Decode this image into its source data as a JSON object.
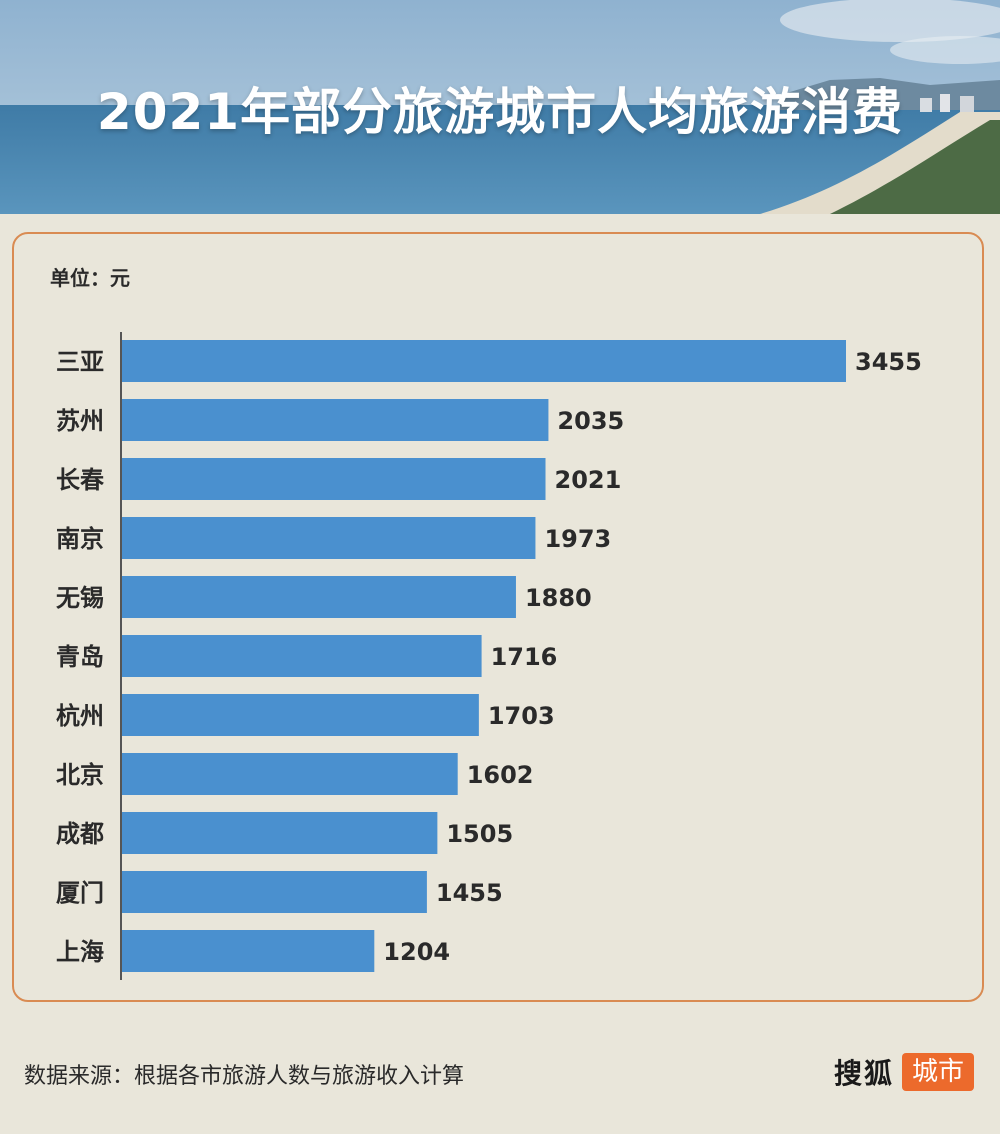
{
  "header": {
    "title": "2021年部分旅游城市人均旅游消费"
  },
  "unit_label": "单位：元",
  "chart_data": {
    "type": "bar",
    "orientation": "horizontal",
    "categories": [
      "三亚",
      "苏州",
      "长春",
      "南京",
      "无锡",
      "青岛",
      "杭州",
      "北京",
      "成都",
      "厦门",
      "上海"
    ],
    "values": [
      3455,
      2035,
      2021,
      1973,
      1880,
      1716,
      1703,
      1602,
      1505,
      1455,
      1204
    ],
    "bar_color": "#4a90cf",
    "xlim": [
      0,
      3455
    ],
    "grid": false,
    "legend": "none"
  },
  "footer": {
    "source": "数据来源：根据各市旅游人数与旅游收入计算",
    "logo_text": "搜狐",
    "logo_badge": "城市"
  },
  "colors": {
    "background": "#e9e6da",
    "panel_border": "#d98b52",
    "badge": "#ec6a2c"
  }
}
